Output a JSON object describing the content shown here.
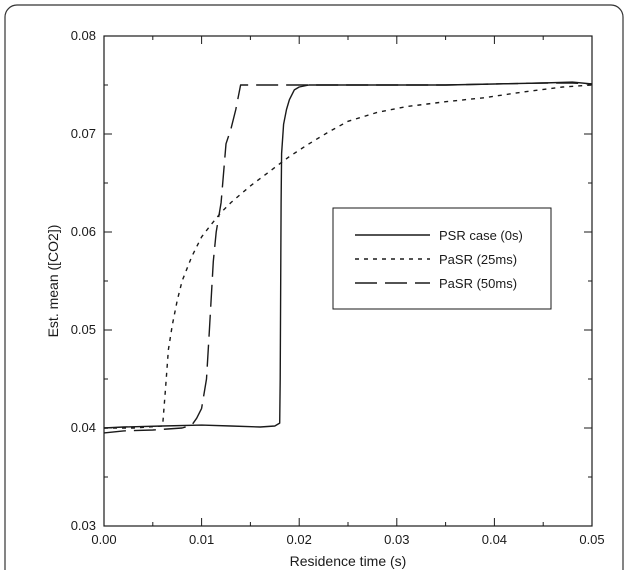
{
  "chart_data": {
    "type": "line",
    "title": "",
    "xlabel": "Residence time (s)",
    "ylabel": "Est. mean ([CO2])",
    "xlim": [
      0.0,
      0.05
    ],
    "ylim": [
      0.03,
      0.08
    ],
    "x_ticks": [
      "0.00",
      "0.01",
      "0.02",
      "0.03",
      "0.04",
      "0.05"
    ],
    "y_ticks": [
      "0.03",
      "0.04",
      "0.05",
      "0.06",
      "0.07",
      "0.08"
    ],
    "grid": false,
    "legend_position": "center-right",
    "series": [
      {
        "name": "PSR case (0s)",
        "dash": "solid",
        "x": [
          0.0,
          0.002,
          0.006,
          0.01,
          0.013,
          0.016,
          0.0175,
          0.018,
          0.01805,
          0.0181,
          0.01815,
          0.0182,
          0.0184,
          0.0187,
          0.019,
          0.0195,
          0.02,
          0.021,
          0.025,
          0.03,
          0.035,
          0.04,
          0.045,
          0.048,
          0.05
        ],
        "y": [
          0.04,
          0.0401,
          0.0402,
          0.0403,
          0.0402,
          0.0401,
          0.0402,
          0.0405,
          0.045,
          0.055,
          0.063,
          0.068,
          0.071,
          0.0725,
          0.0735,
          0.0745,
          0.0748,
          0.075,
          0.075,
          0.075,
          0.075,
          0.0751,
          0.0752,
          0.0753,
          0.0751
        ]
      },
      {
        "name": "PaSR (25ms)",
        "dash": "short-dash",
        "x": [
          0.0,
          0.003,
          0.006,
          0.0063,
          0.0066,
          0.007,
          0.0075,
          0.008,
          0.009,
          0.01,
          0.011,
          0.012,
          0.013,
          0.015,
          0.017,
          0.019,
          0.021,
          0.023,
          0.025,
          0.028,
          0.031,
          0.035,
          0.039,
          0.043,
          0.047,
          0.05
        ],
        "y": [
          0.04,
          0.04,
          0.0402,
          0.044,
          0.048,
          0.0505,
          0.053,
          0.055,
          0.0575,
          0.0595,
          0.0608,
          0.062,
          0.063,
          0.0647,
          0.0662,
          0.0677,
          0.069,
          0.0702,
          0.0713,
          0.0722,
          0.0728,
          0.0733,
          0.0737,
          0.0743,
          0.0748,
          0.075
        ]
      },
      {
        "name": "PaSR (50ms)",
        "dash": "long-dash",
        "x": [
          0.0,
          0.002,
          0.005,
          0.008,
          0.009,
          0.0095,
          0.01,
          0.0105,
          0.0108,
          0.0112,
          0.0115,
          0.012,
          0.0125,
          0.013,
          0.0135,
          0.014,
          0.016,
          0.02,
          0.025,
          0.03,
          0.035,
          0.04,
          0.045,
          0.048,
          0.05
        ],
        "y": [
          0.0395,
          0.0397,
          0.0398,
          0.04,
          0.0403,
          0.041,
          0.042,
          0.045,
          0.05,
          0.057,
          0.06,
          0.063,
          0.069,
          0.0705,
          0.0725,
          0.075,
          0.075,
          0.075,
          0.075,
          0.075,
          0.075,
          0.0751,
          0.0752,
          0.0752,
          0.0751
        ]
      }
    ]
  }
}
